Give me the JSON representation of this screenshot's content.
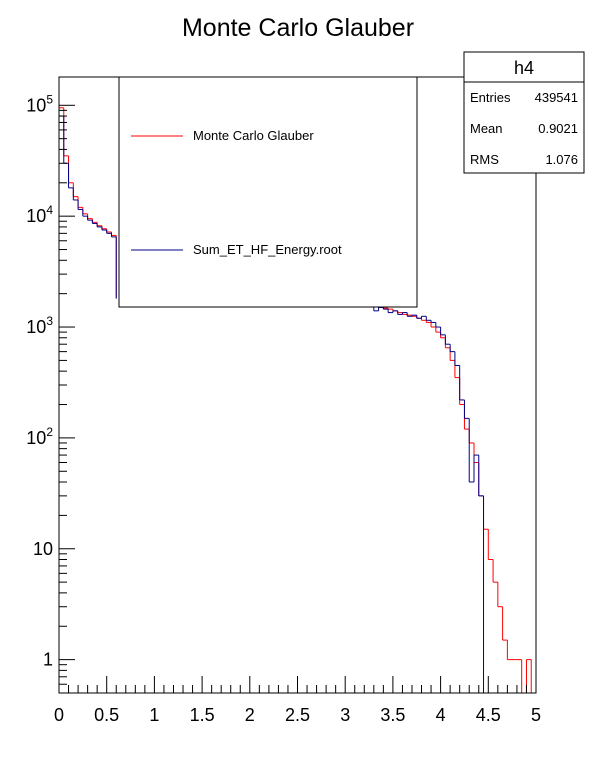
{
  "chart_data": {
    "type": "histogram",
    "title": "Monte Carlo Glauber",
    "xlabel": "",
    "ylabel": "",
    "xlim": [
      0,
      5
    ],
    "ylim": [
      0.5,
      180000
    ],
    "y_scale": "log",
    "x_ticks": [
      {
        "v": 0,
        "label": "0"
      },
      {
        "v": 0.5,
        "label": "0.5"
      },
      {
        "v": 1,
        "label": "1"
      },
      {
        "v": 1.5,
        "label": "1.5"
      },
      {
        "v": 2,
        "label": "2"
      },
      {
        "v": 2.5,
        "label": "2.5"
      },
      {
        "v": 3,
        "label": "3"
      },
      {
        "v": 3.5,
        "label": "3.5"
      },
      {
        "v": 4,
        "label": "4"
      },
      {
        "v": 4.5,
        "label": "4.5"
      },
      {
        "v": 5,
        "label": "5"
      }
    ],
    "y_ticks": [
      {
        "v": 1,
        "base": "1",
        "exp": ""
      },
      {
        "v": 10,
        "base": "10",
        "exp": ""
      },
      {
        "v": 100,
        "base": "10",
        "exp": "2"
      },
      {
        "v": 1000,
        "base": "10",
        "exp": "3"
      },
      {
        "v": 10000,
        "base": "10",
        "exp": "4"
      },
      {
        "v": 100000,
        "base": "10",
        "exp": "5"
      }
    ],
    "bin_width": 0.05,
    "series": [
      {
        "name": "Monte Carlo Glauber",
        "color": "#ff0000",
        "x": [
          0.0,
          0.05,
          0.1,
          0.15,
          0.2,
          0.25,
          0.3,
          0.35,
          0.4,
          0.45,
          0.5,
          0.55,
          3.15,
          3.2,
          3.25,
          3.3,
          3.35,
          3.4,
          3.45,
          3.5,
          3.55,
          3.6,
          3.65,
          3.7,
          3.75,
          3.8,
          3.85,
          3.9,
          3.95,
          4.0,
          4.05,
          4.1,
          4.15,
          4.2,
          4.25,
          4.3,
          4.35,
          4.4,
          4.45,
          4.5,
          4.55,
          4.6,
          4.65,
          4.7,
          4.75,
          4.8,
          4.85,
          4.9,
          4.95
        ],
        "values": [
          95000,
          35000,
          20000,
          15000,
          12000,
          10500,
          9500,
          8800,
          8200,
          7700,
          7200,
          6700,
          1850,
          1750,
          1650,
          1580,
          1520,
          1480,
          1450,
          1400,
          1350,
          1300,
          1280,
          1250,
          1200,
          1150,
          1100,
          1000,
          900,
          800,
          650,
          500,
          350,
          200,
          120,
          90,
          60,
          30,
          15,
          8,
          5,
          3,
          1.5,
          1,
          1,
          1,
          0,
          1,
          0
        ]
      },
      {
        "name": "Sum_ET_HF_Energy.root",
        "color": "#00008b",
        "x": [
          0.0,
          0.05,
          0.1,
          0.15,
          0.2,
          0.25,
          0.3,
          0.35,
          0.4,
          0.45,
          0.5,
          0.55,
          3.15,
          3.2,
          3.25,
          3.3,
          3.35,
          3.4,
          3.45,
          3.5,
          3.55,
          3.6,
          3.65,
          3.7,
          3.75,
          3.8,
          3.85,
          3.9,
          3.95,
          4.0,
          4.05,
          4.1,
          4.15,
          4.2,
          4.25,
          4.3,
          4.35,
          4.4,
          4.45
        ],
        "values": [
          80000,
          30000,
          18000,
          14000,
          11500,
          10000,
          9200,
          8600,
          8000,
          7500,
          7000,
          6500,
          1800,
          1700,
          1600,
          1400,
          1500,
          1450,
          1350,
          1400,
          1300,
          1350,
          1250,
          1280,
          1200,
          1250,
          1150,
          1100,
          1000,
          850,
          700,
          600,
          450,
          220,
          150,
          40,
          70,
          30,
          0
        ]
      }
    ],
    "legend": {
      "placement": "top-center",
      "entries": [
        "Monte Carlo Glauber",
        "Sum_ET_HF_Energy.root"
      ]
    },
    "stats_box": {
      "name": "h4",
      "rows": [
        {
          "label": "Entries",
          "value": "439541"
        },
        {
          "label": "Mean",
          "value": "0.9021"
        },
        {
          "label": "RMS",
          "value": "1.076"
        }
      ]
    }
  }
}
